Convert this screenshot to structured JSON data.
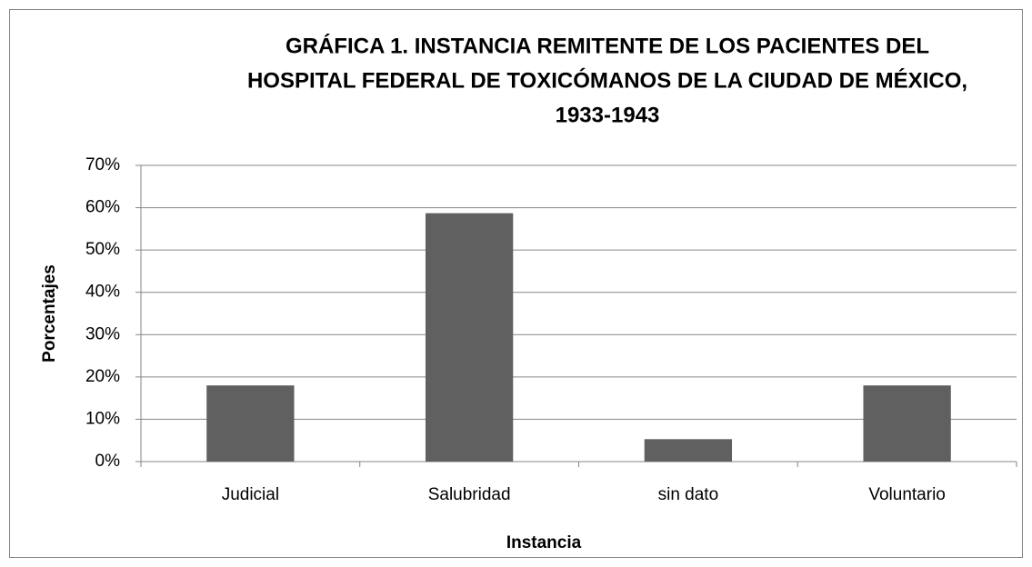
{
  "chart_data": {
    "type": "bar",
    "title": [
      "GRÁFICA 1. INSTANCIA REMITENTE DE LOS PACIENTES DEL",
      "HOSPITAL FEDERAL DE TOXICÓMANOS DE LA CIUDAD DE MÉXICO,",
      "1933-1943"
    ],
    "x_label": "Instancia",
    "y_label": "Porcentajes",
    "categories": [
      "Judicial",
      "Salubridad",
      "sin dato",
      "Voluntario"
    ],
    "values": [
      18,
      58.7,
      5.3,
      18
    ],
    "color": "#606060",
    "ylim": [
      0,
      70
    ],
    "yticks": [
      {
        "value": 0,
        "label": "0%"
      },
      {
        "value": 10,
        "label": "10%"
      },
      {
        "value": 20,
        "label": "20%"
      },
      {
        "value": 30,
        "label": "30%"
      },
      {
        "value": 40,
        "label": "40%"
      },
      {
        "value": 50,
        "label": "50%"
      },
      {
        "value": 60,
        "label": "60%"
      },
      {
        "value": 70,
        "label": "70%"
      }
    ],
    "grid": true
  }
}
